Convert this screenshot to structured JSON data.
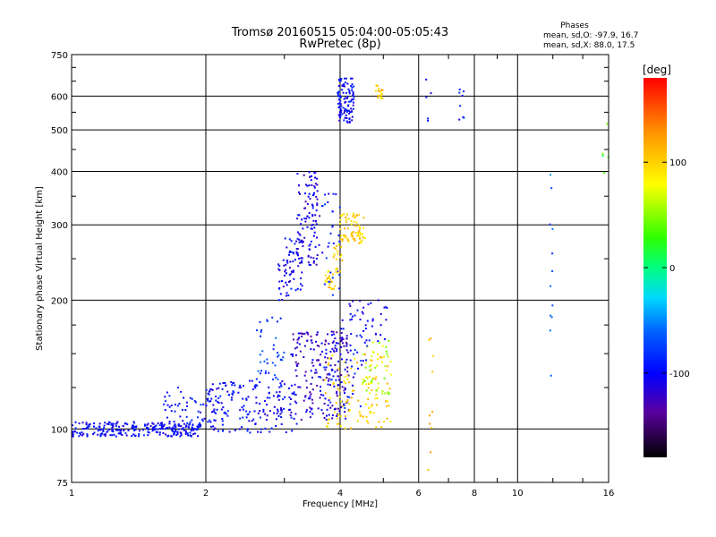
{
  "chart_data": {
    "type": "scatter",
    "title": "Tromsø 20160515 05:04:00-05:05:43",
    "subtitle": "RwPretec (8p)",
    "xlabel": "Frequency [MHz]",
    "ylabel": "Stationary phase Virtual Height [km]",
    "x_scale": "log",
    "y_scale": "log",
    "xlim": [
      1,
      16
    ],
    "ylim": [
      75,
      750
    ],
    "x_ticks": [
      1,
      2,
      4,
      6,
      8,
      10,
      16
    ],
    "y_ticks": [
      75,
      100,
      200,
      300,
      400,
      500,
      600,
      750
    ],
    "grid": true,
    "phase_stats": {
      "heading": "Phases",
      "line_o": "mean, sd,O:  -97.9, 16.7",
      "line_x": "mean, sd,X:  88.0, 17.5"
    },
    "colorbar": {
      "label": "[deg]",
      "ticks": [
        100,
        0,
        -100
      ],
      "range": [
        -180,
        180
      ]
    },
    "clusters": [
      {
        "fmin": 1.0,
        "fmax": 1.95,
        "hmin": 96,
        "hmax": 104,
        "phase": -100,
        "n": 260
      },
      {
        "fmin": 1.6,
        "fmax": 2.2,
        "hmin": 100,
        "hmax": 125,
        "phase": -95,
        "n": 60
      },
      {
        "fmin": 2.0,
        "fmax": 3.2,
        "hmin": 98,
        "hmax": 130,
        "phase": -100,
        "n": 170
      },
      {
        "fmin": 2.6,
        "fmax": 3.0,
        "hmin": 130,
        "hmax": 185,
        "phase": -75,
        "n": 40
      },
      {
        "fmin": 2.9,
        "fmax": 3.1,
        "hmin": 200,
        "hmax": 250,
        "phase": -110,
        "n": 25
      },
      {
        "fmin": 3.0,
        "fmax": 3.3,
        "hmin": 210,
        "hmax": 280,
        "phase": -100,
        "n": 45
      },
      {
        "fmin": 3.2,
        "fmax": 3.6,
        "hmin": 240,
        "hmax": 400,
        "phase": -110,
        "n": 110
      },
      {
        "fmin": 3.1,
        "fmax": 4.2,
        "hmin": 105,
        "hmax": 170,
        "phase": -120,
        "n": 200
      },
      {
        "fmin": 3.6,
        "fmax": 4.0,
        "hmin": 200,
        "hmax": 360,
        "phase": -90,
        "n": 30
      },
      {
        "fmin": 3.7,
        "fmax": 3.9,
        "hmin": 212,
        "hmax": 235,
        "phase": 100,
        "n": 22
      },
      {
        "fmin": 3.85,
        "fmax": 4.05,
        "hmin": 230,
        "hmax": 270,
        "phase": 100,
        "n": 20
      },
      {
        "fmin": 4.0,
        "fmax": 4.55,
        "hmin": 270,
        "hmax": 320,
        "phase": 100,
        "n": 75
      },
      {
        "fmin": 3.95,
        "fmax": 4.3,
        "hmin": 520,
        "hmax": 660,
        "phase": -100,
        "n": 110
      },
      {
        "fmin": 4.8,
        "fmax": 5.0,
        "hmin": 590,
        "hmax": 640,
        "phase": 100,
        "n": 20
      },
      {
        "fmin": 4.0,
        "fmax": 5.1,
        "hmin": 160,
        "hmax": 200,
        "phase": -105,
        "n": 45
      },
      {
        "fmin": 3.7,
        "fmax": 5.2,
        "hmin": 100,
        "hmax": 150,
        "phase": 100,
        "n": 110
      },
      {
        "fmin": 4.5,
        "fmax": 5.2,
        "hmin": 120,
        "hmax": 165,
        "phase": 60,
        "n": 45
      },
      {
        "fmin": 3.6,
        "fmax": 4.6,
        "hmin": 110,
        "hmax": 160,
        "phase": -90,
        "n": 55
      },
      {
        "fmin": 6.3,
        "fmax": 6.5,
        "hmin": 80,
        "hmax": 170,
        "phase": 110,
        "n": 10
      },
      {
        "fmin": 7.4,
        "fmax": 7.6,
        "hmin": 510,
        "hmax": 650,
        "phase": -90,
        "n": 8
      },
      {
        "fmin": 6.2,
        "fmax": 6.4,
        "hmin": 520,
        "hmax": 690,
        "phase": -100,
        "n": 5
      },
      {
        "fmin": 11.8,
        "fmax": 12.0,
        "hmin": 120,
        "hmax": 400,
        "phase": -60,
        "n": 12
      },
      {
        "fmin": 15.5,
        "fmax": 16.0,
        "hmin": 380,
        "hmax": 580,
        "phase": 30,
        "n": 5
      }
    ]
  }
}
